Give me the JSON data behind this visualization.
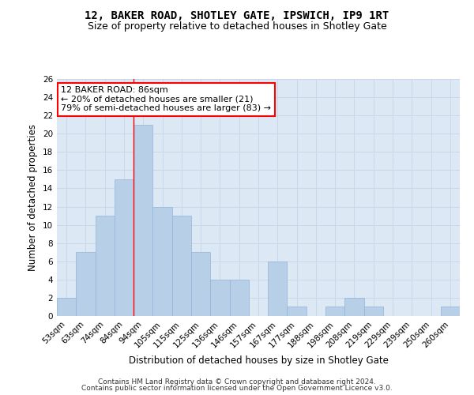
{
  "title1": "12, BAKER ROAD, SHOTLEY GATE, IPSWICH, IP9 1RT",
  "title2": "Size of property relative to detached houses in Shotley Gate",
  "xlabel": "Distribution of detached houses by size in Shotley Gate",
  "ylabel": "Number of detached properties",
  "categories": [
    "53sqm",
    "63sqm",
    "74sqm",
    "84sqm",
    "94sqm",
    "105sqm",
    "115sqm",
    "125sqm",
    "136sqm",
    "146sqm",
    "157sqm",
    "167sqm",
    "177sqm",
    "188sqm",
    "198sqm",
    "208sqm",
    "219sqm",
    "229sqm",
    "239sqm",
    "250sqm",
    "260sqm"
  ],
  "values": [
    2,
    7,
    11,
    15,
    21,
    12,
    11,
    7,
    4,
    4,
    0,
    6,
    1,
    0,
    1,
    2,
    1,
    0,
    0,
    0,
    1
  ],
  "bar_color": "#b8cfe8",
  "bar_edge_color": "#94b4d8",
  "vline_x": 3.5,
  "vline_color": "red",
  "annotation_line1": "12 BAKER ROAD: 86sqm",
  "annotation_line2": "← 20% of detached houses are smaller (21)",
  "annotation_line3": "79% of semi-detached houses are larger (83) →",
  "annotation_box_color": "white",
  "annotation_box_edge_color": "red",
  "ylim": [
    0,
    26
  ],
  "yticks": [
    0,
    2,
    4,
    6,
    8,
    10,
    12,
    14,
    16,
    18,
    20,
    22,
    24,
    26
  ],
  "grid_color": "#c8d8ea",
  "background_color": "#dce8f4",
  "footer1": "Contains HM Land Registry data © Crown copyright and database right 2024.",
  "footer2": "Contains public sector information licensed under the Open Government Licence v3.0.",
  "title1_fontsize": 10,
  "title2_fontsize": 9,
  "xlabel_fontsize": 8.5,
  "ylabel_fontsize": 8.5,
  "tick_fontsize": 7.5,
  "annot_fontsize": 8,
  "footer_fontsize": 6.5
}
